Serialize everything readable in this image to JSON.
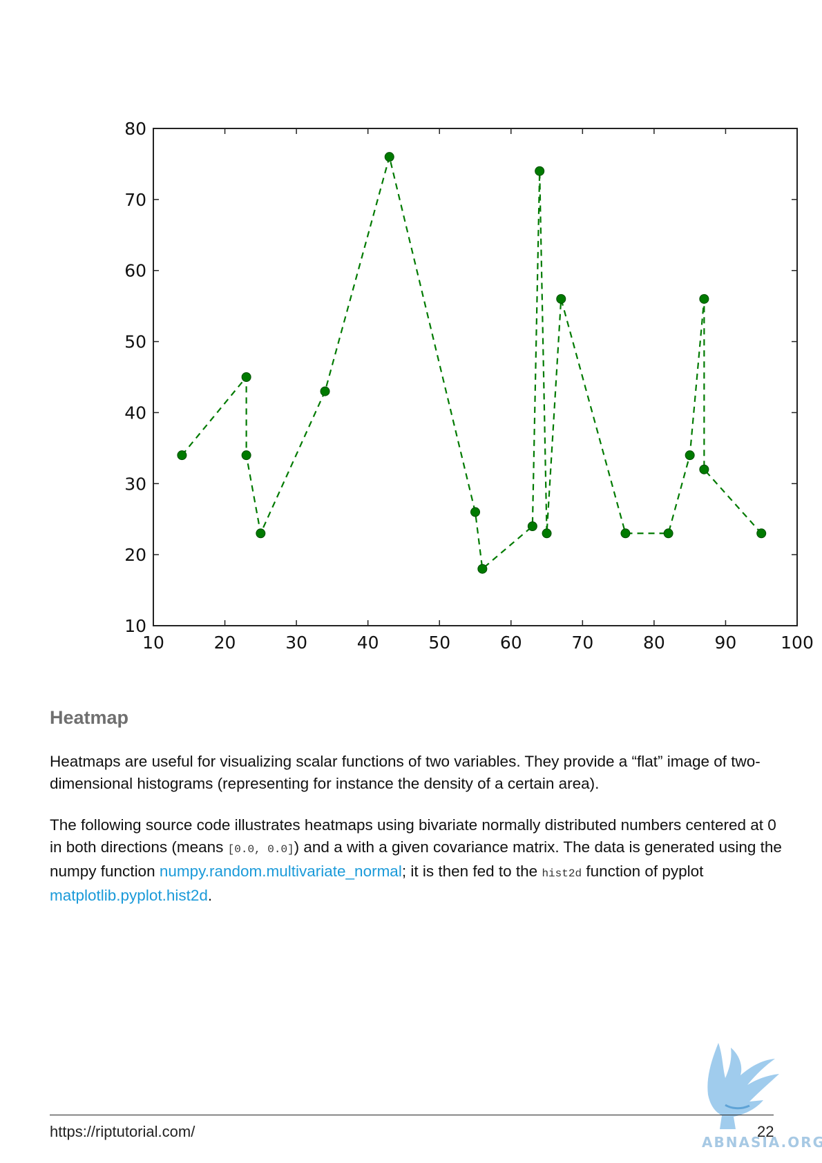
{
  "chart_data": {
    "type": "line",
    "x": [
      14,
      23,
      23,
      25,
      34,
      43,
      55,
      56,
      63,
      64,
      65,
      67,
      76,
      82,
      85,
      87,
      87,
      95
    ],
    "y": [
      34,
      45,
      34,
      23,
      43,
      76,
      26,
      18,
      24,
      74,
      23,
      56,
      23,
      23,
      34,
      56,
      32,
      23
    ],
    "xlim": [
      10,
      100
    ],
    "ylim": [
      10,
      80
    ],
    "xticks": [
      "10",
      "20",
      "30",
      "40",
      "50",
      "60",
      "70",
      "80",
      "90",
      "100"
    ],
    "yticks": [
      "10",
      "20",
      "30",
      "40",
      "50",
      "60",
      "70",
      "80"
    ],
    "line_style": "dashed",
    "marker": "circle",
    "color": "#007a00",
    "title": "",
    "xlabel": "",
    "ylabel": "",
    "grid": false
  },
  "section": {
    "heading": "Heatmap"
  },
  "paragraph1": "Heatmaps are useful for visualizing scalar functions of two variables. They provide a “flat” image of two-dimensional histograms (representing for instance the density of a certain area).",
  "paragraph2": {
    "t1": "The following source code illustrates heatmaps using bivariate normally distributed numbers centered at 0 in both directions (means ",
    "code1": "[0.0, 0.0]",
    "t2": ") and a with a given covariance matrix. The data is generated using the numpy function ",
    "link1": "numpy.random.multivariate_normal",
    "t3": "; it is then fed to the ",
    "code2": "hist2d",
    "t4": " function of pyplot ",
    "link2": "matplotlib.pyplot.hist2d",
    "t5": "."
  },
  "footer": {
    "url": "https://riptutorial.com/",
    "page_number": "22"
  },
  "watermark": {
    "text": "ABNASIA.ORG"
  },
  "colors": {
    "series": "#007a00",
    "link": "#1a9ad9",
    "heading": "#6f6f6f"
  }
}
